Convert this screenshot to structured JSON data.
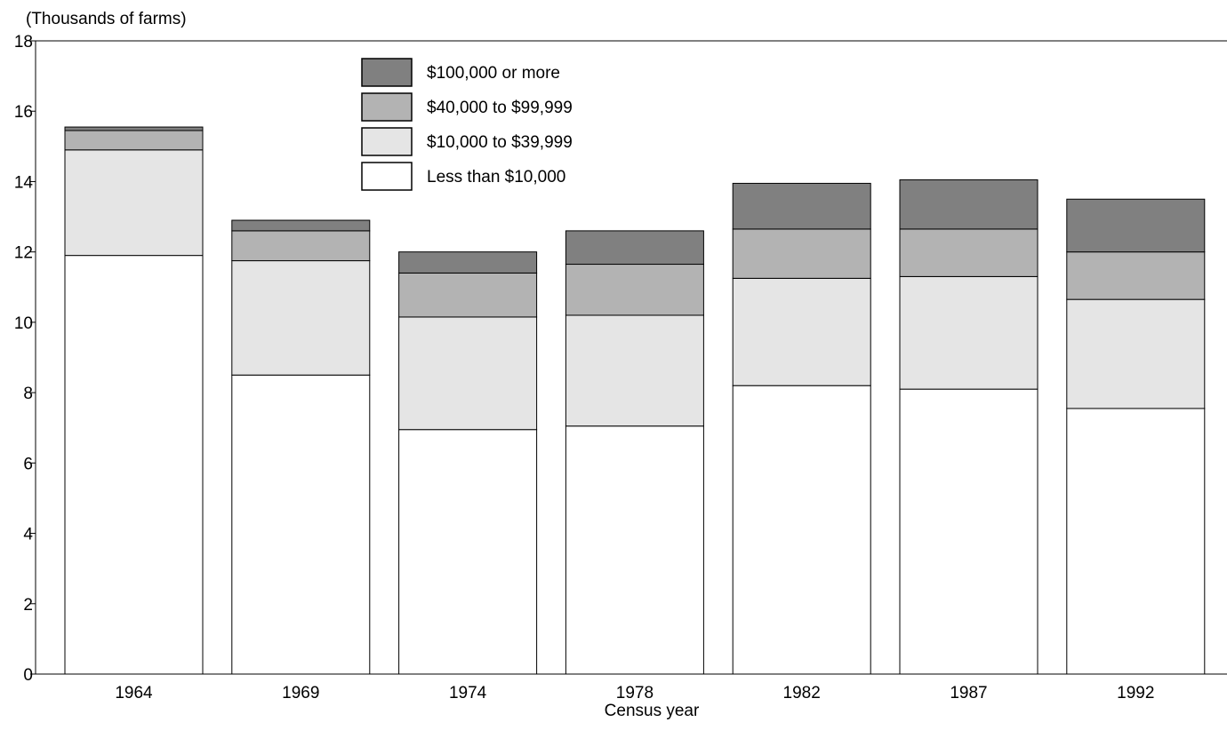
{
  "chart_data": {
    "type": "bar",
    "stacked": true,
    "title": "",
    "ylabel": "(Thousands of farms)",
    "xlabel": "Census year",
    "ylim": [
      0,
      18
    ],
    "yticks": [
      "0",
      "2",
      "4",
      "6",
      "8",
      "10",
      "12",
      "14",
      "16",
      "18"
    ],
    "categories": [
      "1964",
      "1969",
      "1974",
      "1978",
      "1982",
      "1987",
      "1992"
    ],
    "series": [
      {
        "name": "Less than $10,000",
        "color": "#ffffff",
        "values": [
          11.9,
          8.5,
          6.95,
          7.05,
          8.2,
          8.1,
          7.55
        ]
      },
      {
        "name": "$10,000 to $39,999",
        "color": "#e5e5e5",
        "values": [
          3.0,
          3.25,
          3.2,
          3.15,
          3.05,
          3.2,
          3.1
        ]
      },
      {
        "name": "$40,000 to $99,999",
        "color": "#b3b3b3",
        "values": [
          0.55,
          0.85,
          1.25,
          1.45,
          1.4,
          1.35,
          1.35
        ]
      },
      {
        "name": "$100,000 or more",
        "color": "#808080",
        "values": [
          0.1,
          0.3,
          0.6,
          0.95,
          1.3,
          1.4,
          1.5
        ]
      }
    ],
    "legend_position": "top-center",
    "legend_order": [
      "$100,000 or more",
      "$40,000 to $99,999",
      "$10,000 to $39,999",
      "Less than $10,000"
    ],
    "grid": false
  }
}
